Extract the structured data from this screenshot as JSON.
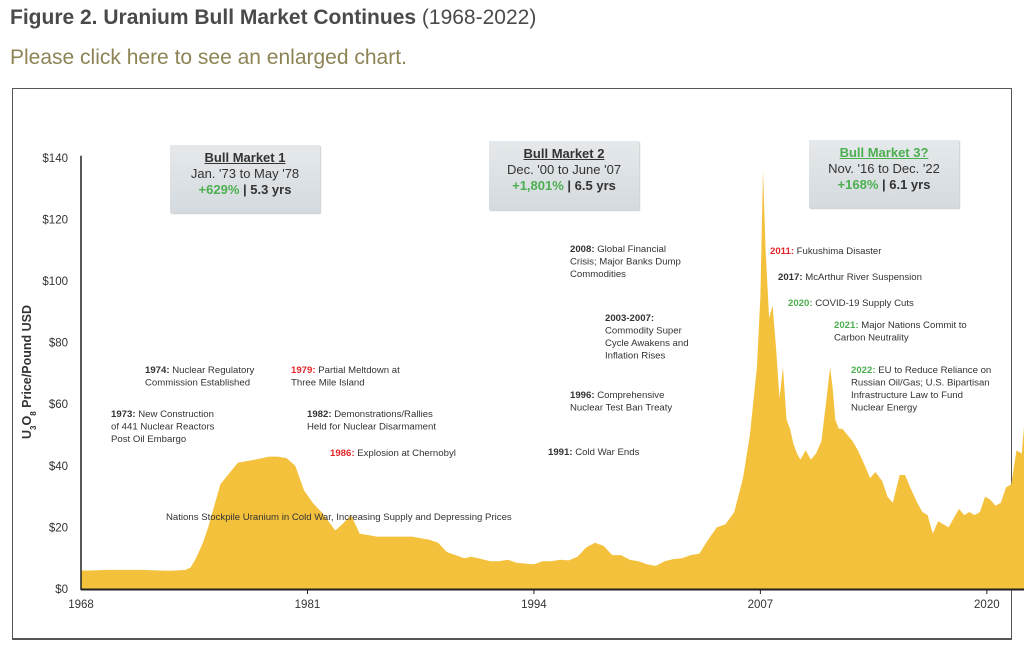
{
  "header": {
    "title_bold": "Figure 2. Uranium Bull Market Continues",
    "title_range": "(1968-2022)",
    "link_text": "Please click here to see an enlarged chart."
  },
  "colors": {
    "area_fill": "#f4c13d",
    "text": "#333333",
    "red": "#e4262a",
    "green": "#4caf50",
    "blue": "#2f5f78",
    "link": "#8d8455"
  },
  "chart_data": {
    "type": "area",
    "title": "Figure 2. Uranium Bull Market Continues (1968-2022)",
    "xlabel": "",
    "ylabel": "U3O8 Price/Pound USD",
    "ylabel_parts": {
      "a": "U",
      "s1": "3",
      "b": "O",
      "s2": "8",
      "c": " Price/Pound USD"
    },
    "xlim": [
      1968,
      2022.5
    ],
    "ylim": [
      0,
      140
    ],
    "x_ticks": [
      1968,
      1981,
      1994,
      2007,
      2020
    ],
    "x_tick_labels": [
      "1968",
      "1981",
      "1994",
      "2007",
      "2020"
    ],
    "y_ticks": [
      0,
      20,
      40,
      60,
      80,
      100,
      120,
      140
    ],
    "y_tick_labels": [
      "$0",
      "$20",
      "$40",
      "$60",
      "$80",
      "$100",
      "$120",
      "$140"
    ],
    "grid": false,
    "series": [
      {
        "name": "U3O8 spot price",
        "x": [
          1968.0,
          1968.5,
          1969.5,
          1970.5,
          1971.5,
          1972.5,
          1973.0,
          1973.5,
          1974.0,
          1974.3,
          1974.6,
          1975.0,
          1975.3,
          1975.6,
          1976.0,
          1977.0,
          1978.0,
          1978.8,
          1979.3,
          1979.8,
          1980.3,
          1980.8,
          1981.3,
          1981.8,
          1982.2,
          1982.6,
          1983.0,
          1983.5,
          1984.0,
          1985.0,
          1986.0,
          1987.0,
          1988.0,
          1988.5,
          1989.0,
          1989.5,
          1990.0,
          1990.4,
          1990.8,
          1991.5,
          1992.0,
          1992.5,
          1993.0,
          1994.0,
          1994.5,
          1995.0,
          1995.5,
          1996.0,
          1996.5,
          1997.0,
          1997.5,
          1998.0,
          1998.5,
          1999.0,
          1999.5,
          2000.0,
          2000.5,
          2001.0,
          2001.5,
          2002.0,
          2002.5,
          2003.0,
          2003.5,
          2004.0,
          2004.5,
          2005.0,
          2005.5,
          2006.0,
          2006.4,
          2006.8,
          2007.0,
          2007.15,
          2007.3,
          2007.5,
          2007.7,
          2007.9,
          2008.1,
          2008.3,
          2008.5,
          2008.7,
          2008.9,
          2009.1,
          2009.3,
          2009.6,
          2009.9,
          2010.2,
          2010.5,
          2010.8,
          2011.0,
          2011.15,
          2011.3,
          2011.5,
          2011.7,
          2012.0,
          2012.3,
          2012.6,
          2013.0,
          2013.3,
          2013.6,
          2014.0,
          2014.3,
          2014.6,
          2015.0,
          2015.3,
          2015.6,
          2016.0,
          2016.3,
          2016.6,
          2016.9,
          2017.2,
          2017.5,
          2017.8,
          2018.1,
          2018.4,
          2018.7,
          2019.0,
          2019.3,
          2019.6,
          2019.9,
          2020.2,
          2020.5,
          2020.8,
          2021.1,
          2021.4,
          2021.7,
          2022.0,
          2022.2,
          2022.4,
          2022.5
        ],
        "values": [
          6.0,
          6.0,
          6.2,
          6.2,
          6.2,
          6.0,
          5.9,
          6.0,
          6.2,
          7.0,
          10.0,
          15.0,
          20.0,
          26.0,
          34.0,
          41.0,
          42.0,
          43.0,
          43.0,
          42.5,
          40.0,
          32.0,
          28.0,
          25.0,
          22.0,
          19.0,
          21.0,
          24.0,
          18.0,
          17.0,
          17.0,
          17.0,
          16.0,
          15.0,
          12.0,
          11.0,
          10.0,
          10.5,
          10.0,
          9.0,
          9.0,
          9.5,
          8.5,
          8.0,
          9.0,
          9.0,
          9.5,
          9.3,
          10.5,
          13.5,
          15.0,
          14.0,
          11.0,
          11.0,
          9.5,
          9.0,
          8.0,
          7.5,
          9.0,
          9.7,
          10.0,
          11.0,
          11.5,
          16.0,
          20.0,
          21.0,
          25.0,
          36.0,
          50.0,
          72.0,
          95.0,
          136.0,
          110.0,
          88.0,
          92.0,
          78.0,
          62.0,
          72.0,
          55.0,
          52.0,
          47.0,
          44.0,
          42.0,
          45.0,
          42.0,
          44.0,
          48.0,
          62.0,
          72.0,
          65.0,
          55.0,
          52.0,
          52.0,
          50.0,
          48.0,
          45.0,
          40.0,
          36.0,
          38.0,
          35.0,
          30.0,
          28.0,
          37.0,
          37.0,
          33.0,
          28.0,
          25.0,
          24.0,
          18.0,
          22.0,
          21.0,
          20.0,
          23.0,
          26.0,
          24.0,
          25.0,
          24.0,
          25.0,
          30.0,
          29.0,
          27.0,
          28.0,
          33.0,
          34.0,
          45.0,
          44.0,
          57.0,
          50.0,
          50.0
        ]
      }
    ],
    "bull_markets": [
      {
        "title": "Bull Market 1",
        "dates": "Jan. '73 to May '78",
        "gain": "+629%",
        "duration": "| 5.3 yrs"
      },
      {
        "title": "Bull Market 2",
        "dates": "Dec. '00 to June '07",
        "gain": "+1,801%",
        "duration": "| 6.5 yrs"
      },
      {
        "title": "Bull Market 3?",
        "dates": "Nov. '16 to Dec. '22",
        "gain": "+168%",
        "duration": "| 6.1 yrs"
      }
    ],
    "annotations": [
      {
        "id": "a1974",
        "color": "dark",
        "year": "1974:",
        "lines": [
          "Nuclear Regulatory",
          "Commission Established"
        ]
      },
      {
        "id": "a1973",
        "color": "dark",
        "year": "1973:",
        "lines": [
          "New Construction",
          "of 441 Nuclear Reactors",
          "Post Oil Embargo"
        ]
      },
      {
        "id": "a1979",
        "color": "red",
        "year": "1979:",
        "lines": [
          "Partial Meltdown at",
          "Three Mile Island"
        ]
      },
      {
        "id": "a1982",
        "color": "dark",
        "year": "1982:",
        "lines": [
          "Demonstrations/Rallies",
          "Held for Nuclear Disarmament"
        ]
      },
      {
        "id": "a1986",
        "color": "red",
        "year": "1986:",
        "lines": [
          "Explosion at Chernobyl"
        ]
      },
      {
        "id": "acold",
        "color": "blue",
        "year": "",
        "lines": [
          "Nations Stockpile Uranium in Cold War, Increasing Supply and Depressing Prices"
        ]
      },
      {
        "id": "a2008",
        "color": "dark",
        "year": "2008:",
        "lines": [
          "Global Financial",
          "Crisis; Major Banks Dump",
          "Commodities"
        ]
      },
      {
        "id": "a2003",
        "color": "dark",
        "year": "2003-2007:",
        "lines": [
          "",
          "Commodity Super",
          "Cycle Awakens and",
          "Inflation Rises"
        ]
      },
      {
        "id": "a1996",
        "color": "dark",
        "year": "1996:",
        "lines": [
          "Comprehensive",
          "Nuclear Test Ban Treaty"
        ]
      },
      {
        "id": "a1991",
        "color": "dark",
        "year": "1991:",
        "lines": [
          "Cold War Ends"
        ]
      },
      {
        "id": "a2011",
        "color": "red",
        "year": "2011:",
        "lines": [
          "Fukushima Disaster"
        ]
      },
      {
        "id": "a2017",
        "color": "dark",
        "year": "2017:",
        "lines": [
          "McArthur River Suspension"
        ]
      },
      {
        "id": "a2020",
        "color": "green",
        "year": "2020:",
        "lines": [
          "COVID-19 Supply Cuts"
        ]
      },
      {
        "id": "a2021",
        "color": "green",
        "year": "2021:",
        "lines": [
          "Major Nations Commit to",
          "Carbon Neutrality"
        ]
      },
      {
        "id": "a2022",
        "color": "green",
        "year": "2022:",
        "lines": [
          "EU to Reduce Reliance on",
          "Russian Oil/Gas; U.S. Bipartisan",
          "Infrastructure Law to Fund",
          "Nuclear Energy"
        ]
      }
    ]
  }
}
